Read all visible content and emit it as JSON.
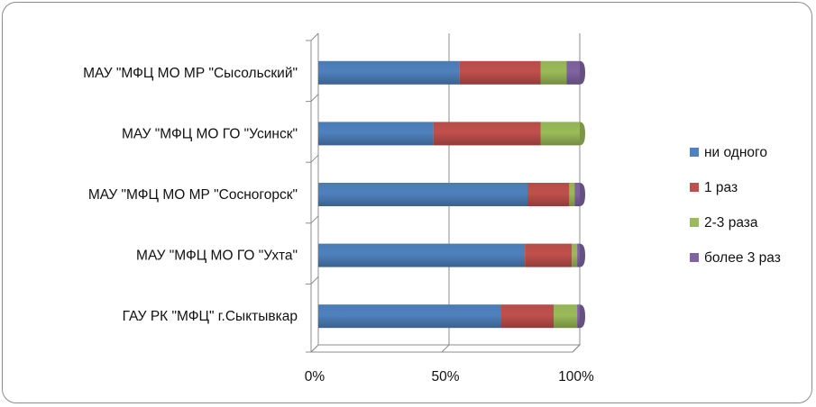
{
  "chart_data": {
    "type": "bar",
    "orientation": "horizontal",
    "stacked": "percent",
    "categories": [
      "МАУ \"МФЦ  МО МР  \"Сысольский\"",
      "МАУ \"МФЦ  МО ГО  \"Усинск\"",
      "МАУ \"МФЦ МО МР \"Сосногорск\"",
      "МАУ \"МФЦ МО ГО \"Ухта\"",
      "ГАУ РК \"МФЦ\"  г.Сыктывкар"
    ],
    "series": [
      {
        "name": "ни одного",
        "color": "#4F81BD",
        "values": [
          54,
          44,
          80,
          79,
          70
        ]
      },
      {
        "name": "1 раз",
        "color": "#C0504D",
        "values": [
          31,
          41,
          16,
          18,
          20
        ]
      },
      {
        "name": "2-3 раза",
        "color": "#9BBB59",
        "values": [
          10,
          15,
          2,
          2,
          9
        ]
      },
      {
        "name": "более 3 раз",
        "color": "#8064A2",
        "values": [
          5,
          0,
          2,
          1,
          1
        ]
      }
    ],
    "xlim": [
      0,
      100
    ],
    "x_ticks": [
      "0%",
      "50%",
      "100%"
    ],
    "grid": true,
    "legend_position": "right"
  }
}
